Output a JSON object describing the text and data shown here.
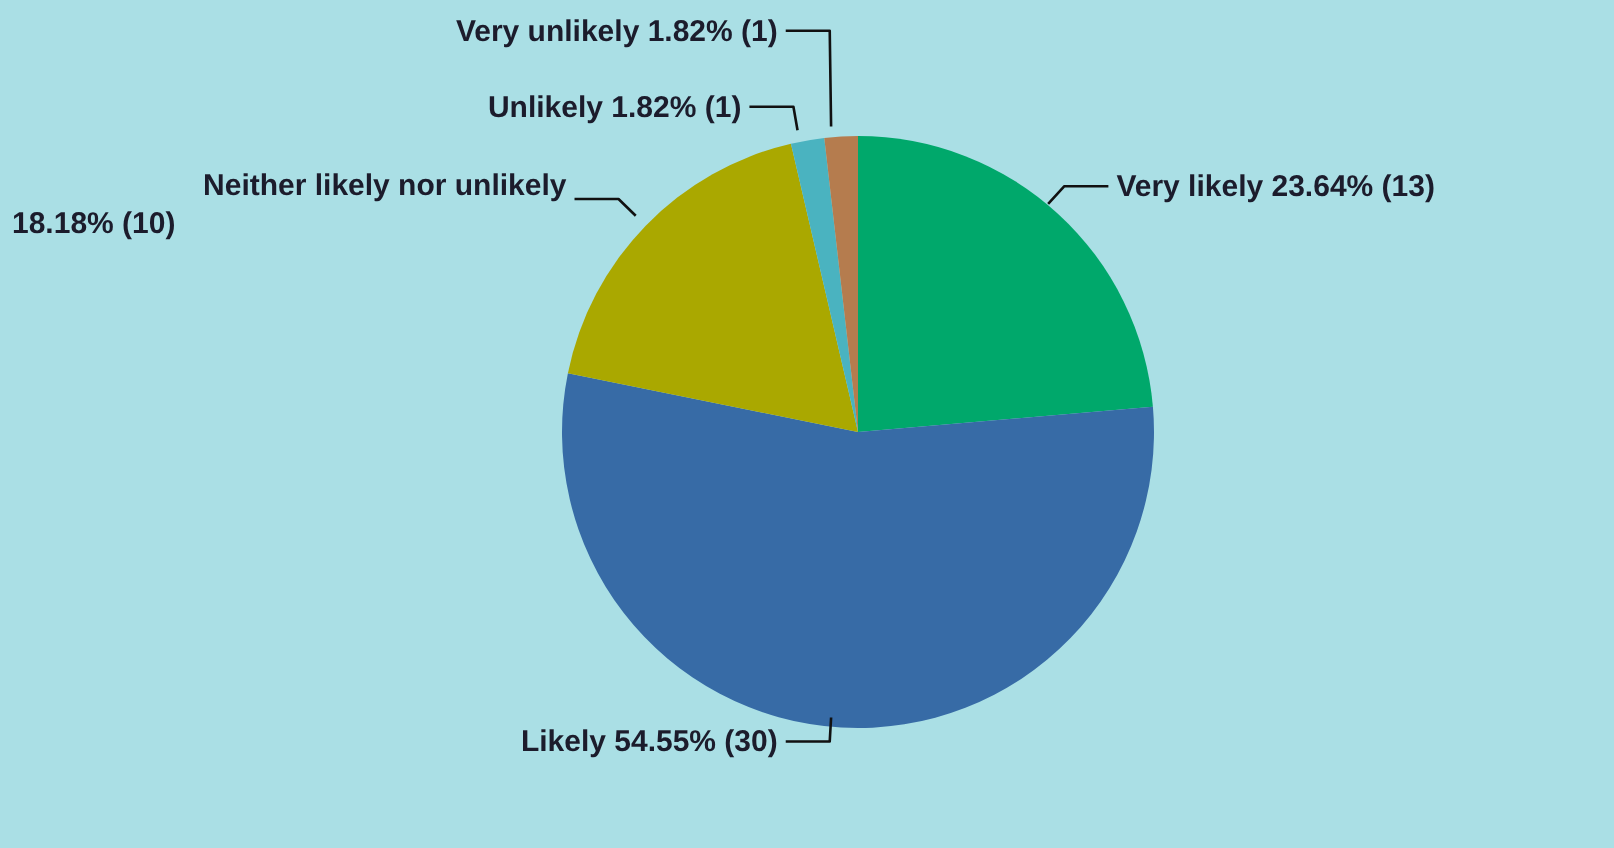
{
  "chart_data": {
    "type": "pie",
    "categories": [
      "Very likely",
      "Likely",
      "Neither likely nor unlikely",
      "Unlikely",
      "Very unlikely"
    ],
    "values": [
      13,
      30,
      10,
      1,
      1
    ],
    "colors": [
      "#00a86b",
      "#376ba6",
      "#aaa800",
      "#4ab3c0",
      "#b57c4e"
    ],
    "value_labels": [
      "23.64% (13)",
      "54.55% (30)",
      "18.18% (10)",
      "1.82% (1)",
      "1.82% (1)"
    ],
    "legend": false
  }
}
